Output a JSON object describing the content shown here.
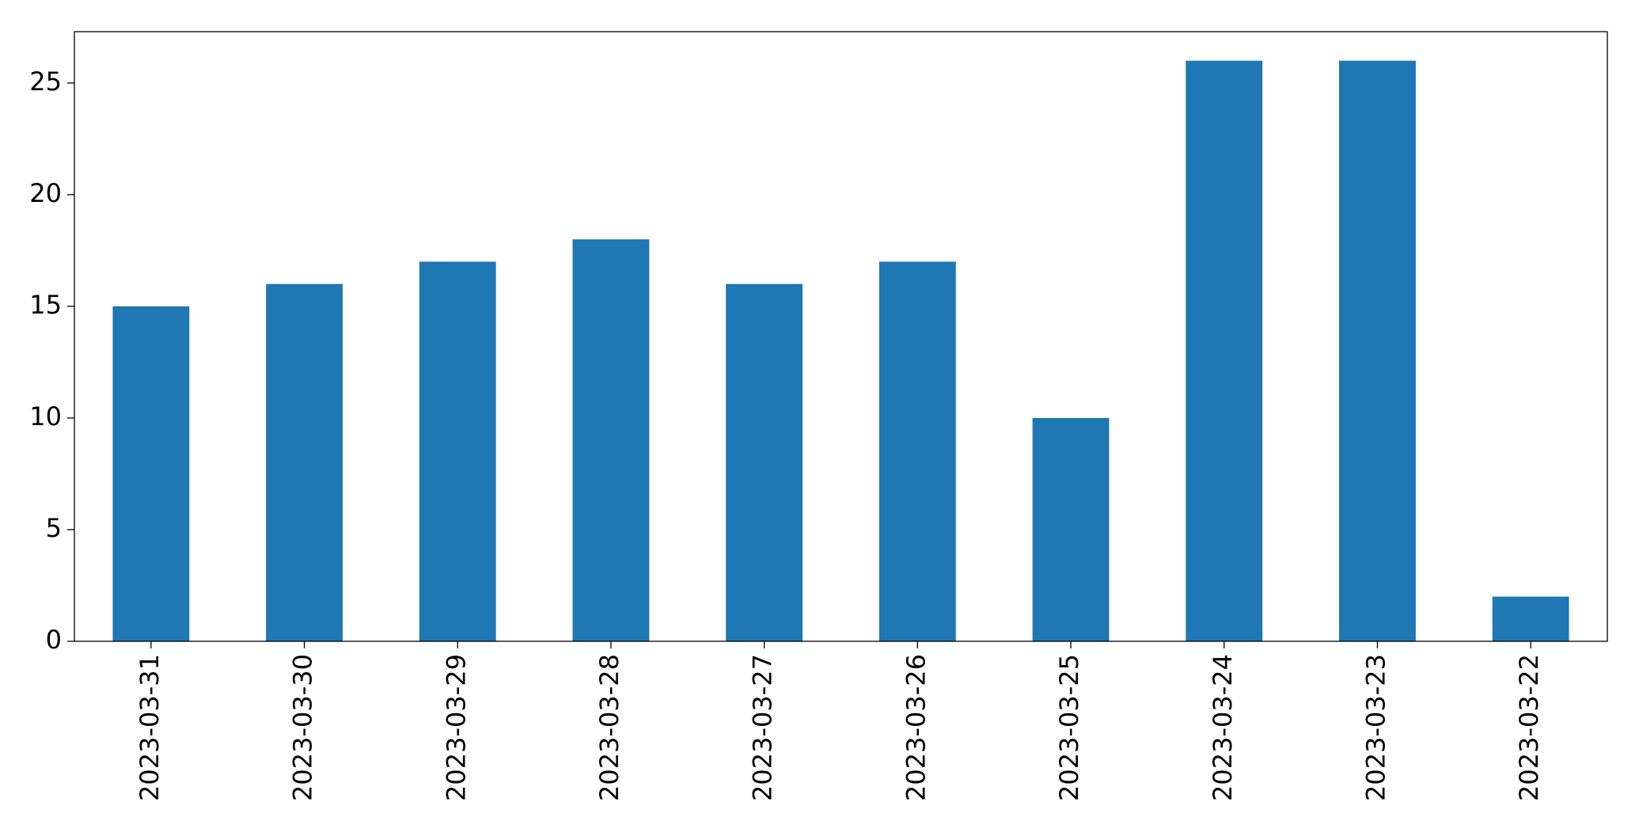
{
  "chart_data": {
    "type": "bar",
    "categories": [
      "2023-03-31",
      "2023-03-30",
      "2023-03-29",
      "2023-03-28",
      "2023-03-27",
      "2023-03-26",
      "2023-03-25",
      "2023-03-24",
      "2023-03-23",
      "2023-03-22"
    ],
    "values": [
      15,
      16,
      17,
      18,
      16,
      17,
      10,
      26,
      26,
      2
    ],
    "color": "#1f77b4",
    "ylim": [
      0,
      27.3
    ],
    "yticks": [
      0,
      5,
      10,
      15,
      20,
      25
    ],
    "grid": false
  }
}
